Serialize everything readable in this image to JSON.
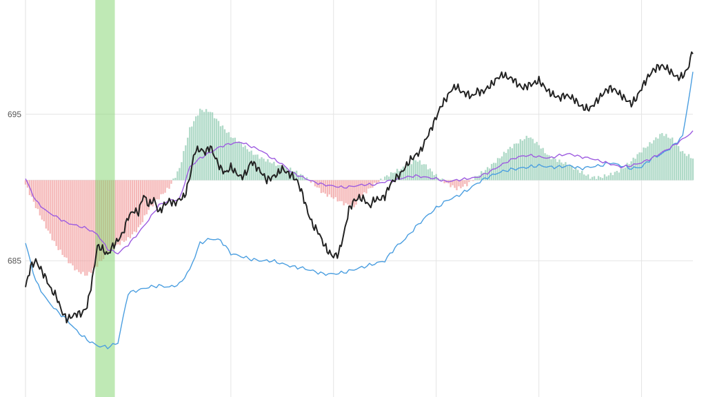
{
  "chart_data": {
    "type": "line",
    "title": "",
    "xlabel": "",
    "ylabel": "",
    "ylim": [
      675.7,
      702.8
    ],
    "xlim": [
      0,
      130
    ],
    "grid": true,
    "y_ticks": [
      {
        "value": 695,
        "label": "695"
      },
      {
        "value": 685,
        "label": "685"
      }
    ],
    "x_gridlines": [
      40,
      60,
      80,
      100,
      120
    ],
    "histogram_baseline": 690.5,
    "highlight_band": {
      "x_start": 13.6,
      "x_end": 17.4
    },
    "series": [
      {
        "role": "price",
        "color": "#222222",
        "x": [
          0,
          1,
          2,
          3,
          4,
          5,
          6,
          7,
          8,
          9,
          10,
          11,
          12,
          13,
          14,
          15,
          16,
          17,
          18,
          19,
          20,
          21,
          22,
          23,
          24,
          25,
          26,
          27,
          28,
          29,
          30,
          31,
          32,
          33,
          34,
          35,
          36,
          37,
          38,
          39,
          40,
          41,
          42,
          43,
          44,
          45,
          46,
          47,
          48,
          49,
          50,
          51,
          52,
          53,
          54,
          55,
          56,
          57,
          58,
          59,
          60,
          61,
          62,
          63,
          64,
          65,
          66,
          67,
          68,
          69,
          70,
          71,
          72,
          73,
          74,
          75,
          76,
          77,
          78,
          79,
          80,
          81,
          82,
          83,
          84,
          85,
          86,
          87,
          88,
          89,
          90,
          91,
          92,
          93,
          94,
          95,
          96,
          97,
          98,
          99,
          100,
          101,
          102,
          103,
          104,
          105,
          106,
          107,
          108,
          109,
          110,
          111,
          112,
          113,
          114,
          115,
          116,
          117,
          118,
          119,
          120,
          121,
          122,
          123,
          124,
          125,
          126,
          127,
          128,
          129,
          130
        ],
        "values": [
          683.2,
          684.6,
          685.0,
          684.4,
          683.8,
          683.0,
          682.6,
          681.6,
          681.0,
          681.2,
          681.4,
          681.4,
          681.9,
          683.7,
          686.0,
          685.8,
          685.4,
          686.0,
          686.4,
          686.9,
          688.0,
          688.4,
          688.3,
          689.5,
          688.8,
          689.2,
          688.3,
          688.8,
          689.1,
          688.9,
          689.2,
          689.4,
          690.7,
          692.5,
          692.6,
          692.4,
          692.8,
          692.0,
          691.3,
          691.0,
          691.4,
          691.0,
          690.7,
          691.0,
          691.8,
          691.4,
          691.0,
          690.5,
          690.7,
          690.9,
          691.3,
          691.0,
          690.8,
          690.4,
          689.5,
          688.3,
          687.4,
          687.0,
          686.2,
          685.6,
          685.3,
          685.5,
          686.8,
          688.5,
          689.1,
          689.3,
          689.2,
          688.7,
          689.2,
          689.2,
          689.4,
          690.2,
          690.6,
          690.9,
          691.4,
          691.9,
          692.2,
          692.5,
          693.3,
          694.0,
          694.8,
          695.6,
          696.1,
          696.7,
          696.9,
          696.5,
          696.4,
          696.2,
          696.6,
          696.5,
          696.8,
          697.1,
          697.5,
          697.7,
          697.5,
          697.4,
          697.0,
          696.8,
          697.0,
          697.1,
          697.3,
          696.9,
          696.5,
          696.3,
          696.1,
          696.3,
          696.2,
          696.0,
          695.6,
          695.4,
          695.4,
          695.8,
          696.2,
          696.6,
          696.8,
          696.6,
          696.3,
          696.0,
          695.7,
          696.1,
          696.8,
          697.4,
          697.9,
          698.2,
          698.3,
          698.1,
          697.8,
          697.5,
          697.6,
          698.1,
          699.4
        ]
      },
      {
        "role": "average-purple",
        "color": "#9d5be0",
        "x": [
          0,
          2,
          4,
          6,
          8,
          10,
          12,
          14,
          16,
          18,
          20,
          22,
          24,
          26,
          28,
          30,
          32,
          34,
          36,
          38,
          40,
          42,
          44,
          46,
          48,
          50,
          52,
          54,
          56,
          58,
          60,
          62,
          64,
          66,
          68,
          70,
          72,
          74,
          76,
          78,
          80,
          82,
          84,
          86,
          88,
          90,
          92,
          94,
          96,
          98,
          100,
          102,
          104,
          106,
          108,
          110,
          112,
          114,
          116,
          118,
          120,
          122,
          124,
          126,
          128,
          130
        ],
        "values": [
          690.6,
          689.1,
          688.4,
          688.0,
          687.6,
          687.4,
          687.2,
          686.8,
          685.8,
          685.5,
          686.1,
          686.9,
          687.8,
          688.8,
          689.1,
          689.2,
          691.4,
          692.0,
          692.4,
          692.8,
          693.0,
          693.1,
          692.8,
          692.5,
          692.0,
          691.6,
          691.0,
          690.7,
          690.4,
          690.2,
          690.1,
          690.0,
          690.1,
          690.2,
          690.2,
          690.4,
          690.5,
          690.7,
          690.8,
          690.7,
          690.6,
          690.4,
          690.5,
          690.6,
          690.7,
          691.0,
          691.4,
          691.8,
          692.1,
          692.2,
          692.1,
          692.0,
          692.2,
          692.3,
          692.1,
          692.0,
          691.8,
          691.6,
          691.4,
          691.5,
          691.7,
          692.0,
          692.4,
          692.8,
          693.3,
          693.8
        ]
      },
      {
        "role": "average-blue",
        "color": "#4a9ee0",
        "x": [
          0,
          2,
          4,
          6,
          8,
          10,
          12,
          14,
          16,
          18,
          20,
          22,
          24,
          26,
          28,
          30,
          32,
          34,
          36,
          38,
          40,
          42,
          44,
          46,
          48,
          50,
          52,
          54,
          56,
          58,
          60,
          62,
          64,
          66,
          68,
          70,
          72,
          74,
          76,
          78,
          80,
          82,
          84,
          86,
          88,
          90,
          92,
          94,
          96,
          98,
          100,
          102,
          104,
          106,
          108,
          110,
          112,
          114,
          116,
          118,
          120,
          122,
          124,
          126,
          128,
          130
        ],
        "values": [
          686.2,
          683.6,
          682.4,
          681.6,
          681.0,
          680.2,
          679.6,
          679.2,
          679.1,
          679.4,
          682.8,
          683.0,
          683.2,
          683.3,
          683.2,
          683.4,
          684.4,
          686.2,
          686.5,
          686.4,
          685.5,
          685.3,
          685.1,
          685.0,
          685.0,
          684.8,
          684.6,
          684.5,
          684.3,
          684.1,
          684.1,
          684.2,
          684.4,
          684.6,
          684.8,
          685.0,
          685.9,
          686.5,
          687.3,
          688.0,
          688.6,
          689.1,
          689.4,
          689.8,
          690.3,
          690.7,
          691.0,
          691.2,
          691.3,
          691.4,
          691.5,
          691.4,
          691.4,
          691.5,
          691.3,
          691.4,
          691.5,
          691.7,
          691.5,
          691.3,
          691.4,
          692.0,
          692.3,
          692.8,
          693.5,
          697.8
        ]
      },
      {
        "role": "histogram",
        "positive_color": "#8fcbb1",
        "negative_color": "#f19b9b",
        "x": [
          0,
          2,
          4,
          6,
          8,
          10,
          12,
          14,
          16,
          18,
          20,
          22,
          24,
          26,
          28,
          30,
          32,
          34,
          36,
          38,
          40,
          42,
          44,
          46,
          48,
          50,
          52,
          54,
          56,
          58,
          60,
          62,
          64,
          66,
          68,
          70,
          72,
          74,
          76,
          78,
          80,
          82,
          84,
          86,
          88,
          90,
          92,
          94,
          96,
          98,
          100,
          102,
          104,
          106,
          108,
          110,
          112,
          114,
          116,
          118,
          120,
          122,
          124,
          126,
          128,
          130
        ],
        "values": [
          -0.3,
          -1.8,
          -3.2,
          -4.5,
          -5.4,
          -6.2,
          -6.5,
          -5.8,
          -5.0,
          -4.4,
          -4.0,
          -3.3,
          -2.0,
          -1.2,
          -0.5,
          0.8,
          3.5,
          4.8,
          4.7,
          3.8,
          3.0,
          2.5,
          1.9,
          1.5,
          1.2,
          0.9,
          0.7,
          0.3,
          -0.2,
          -0.9,
          -1.2,
          -1.6,
          -1.8,
          -0.9,
          -0.3,
          0.2,
          0.6,
          0.9,
          1.4,
          1.0,
          0.3,
          -0.2,
          -0.6,
          -0.3,
          0.3,
          0.8,
          1.4,
          2.1,
          2.6,
          3.0,
          2.4,
          1.6,
          1.3,
          1.0,
          0.6,
          0.2,
          0.2,
          0.4,
          0.7,
          1.3,
          2.0,
          2.6,
          3.2,
          2.8,
          1.9,
          1.5
        ]
      }
    ]
  }
}
